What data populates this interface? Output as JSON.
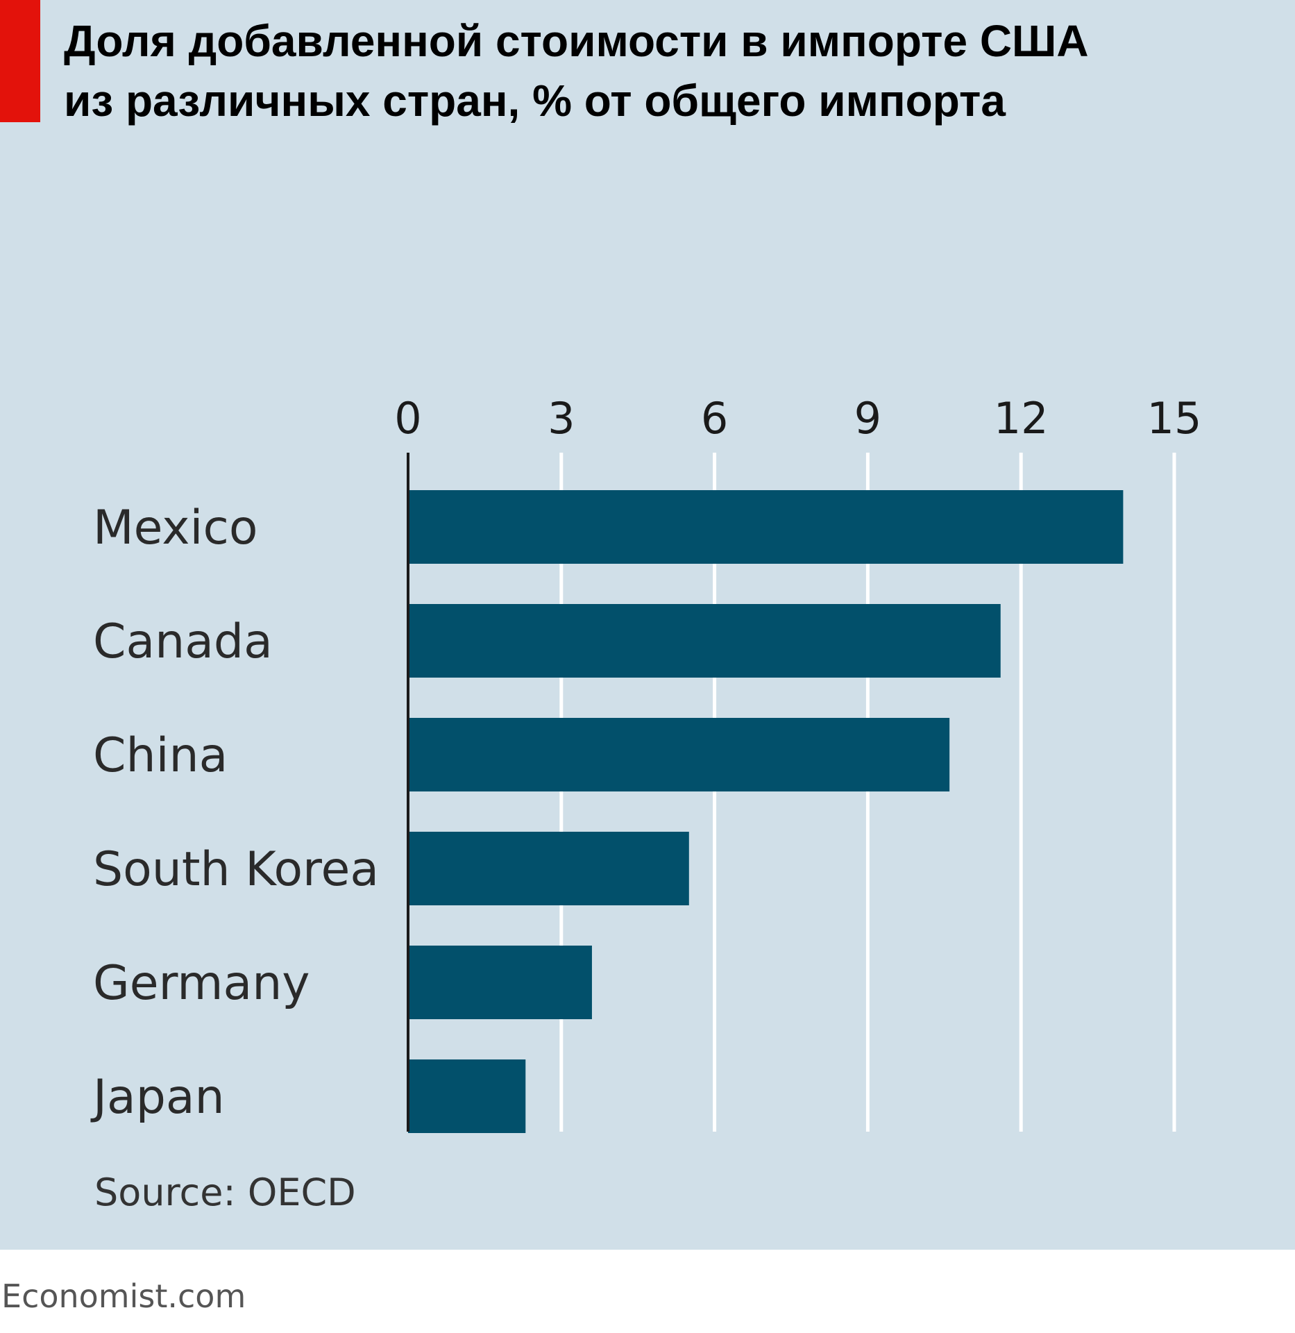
{
  "title_lines": [
    "Доля добавленной стоимости в импорте США",
    "из различных стран, % от общего импорта"
  ],
  "colors": {
    "panel_bg": "#d0dfe8",
    "bar": "#02506b",
    "accent": "#e3120b",
    "grid": "#ffffff"
  },
  "chart_data": {
    "type": "bar",
    "orientation": "horizontal",
    "title": "Доля добавленной стоимости в импорте США из различных стран, % от общего импорта",
    "categories": [
      "Mexico",
      "Canada",
      "China",
      "South Korea",
      "Germany",
      "Japan"
    ],
    "values": [
      14.0,
      11.6,
      10.6,
      5.5,
      3.6,
      2.3
    ],
    "xlim": [
      0,
      15
    ],
    "xticks": [
      "0",
      "3",
      "6",
      "9",
      "12",
      "15"
    ],
    "xtick_values": [
      0,
      3,
      6,
      9,
      12,
      15
    ],
    "xlabel": "",
    "ylabel": "",
    "grid": true,
    "axis_position": "top"
  },
  "source": "Source: OECD",
  "footer": "Economist.com"
}
